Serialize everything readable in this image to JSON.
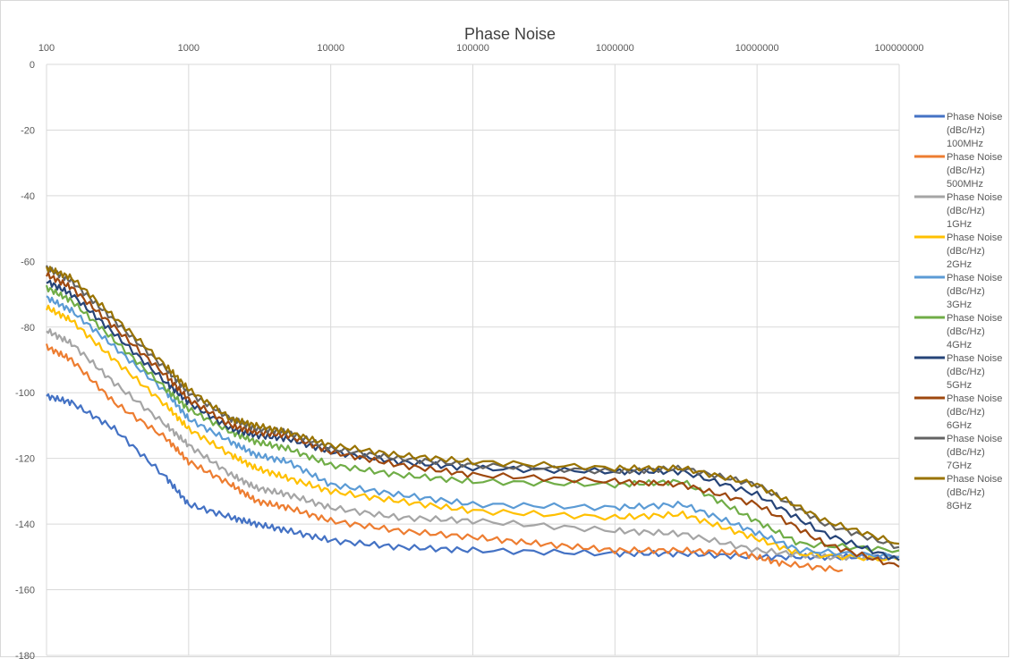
{
  "chart_data": {
    "type": "line",
    "title": "Phase Noise",
    "x_scale": "log",
    "xlim": [
      100,
      100000000
    ],
    "ylim": [
      -180,
      0
    ],
    "x_ticks": [
      "100",
      "1000",
      "10000",
      "100000",
      "1000000",
      "10000000",
      "100000000"
    ],
    "y_ticks": [
      "0",
      "-20",
      "-40",
      "-60",
      "-80",
      "-100",
      "-120",
      "-140",
      "-160",
      "-180"
    ],
    "grid": true,
    "legend_position": "right",
    "series": [
      {
        "name": "Phase Noise (dBc/Hz) 100MHz",
        "color": "#4472C4",
        "x": [
          100,
          150,
          300,
          700,
          1000,
          2000,
          3000,
          5000,
          10000,
          30000,
          100000,
          1000000,
          3000000,
          10000000,
          30000000,
          100000000
        ],
        "y": [
          -101,
          -103,
          -111,
          -126,
          -134,
          -138,
          -140,
          -142,
          -145,
          -147,
          -148,
          -149,
          -149,
          -150,
          -150,
          -150
        ]
      },
      {
        "name": "Phase Noise (dBc/Hz) 500MHz",
        "color": "#ED7D31",
        "x": [
          100,
          150,
          300,
          700,
          1000,
          2000,
          3000,
          5000,
          10000,
          30000,
          100000,
          300000,
          1000000,
          3000000,
          8000000,
          15000000,
          40000000
        ],
        "y": [
          -86,
          -90,
          -103,
          -114,
          -121,
          -128,
          -133,
          -135,
          -139,
          -142,
          -144,
          -146,
          -148,
          -148,
          -149,
          -152,
          -154
        ]
      },
      {
        "name": "Phase Noise (dBc/Hz) 1GHz",
        "color": "#A5A5A5",
        "x": [
          100,
          150,
          300,
          700,
          1000,
          2000,
          3000,
          5000,
          10000,
          30000,
          100000,
          1000000,
          3000000,
          10000000,
          30000000,
          100000000
        ],
        "y": [
          -81,
          -85,
          -97,
          -110,
          -116,
          -125,
          -129,
          -131,
          -135,
          -138,
          -139,
          -142,
          -143,
          -148,
          -150,
          -150
        ]
      },
      {
        "name": "Phase Noise (dBc/Hz) 2GHz",
        "color": "#FFC000",
        "x": [
          100,
          150,
          300,
          700,
          1000,
          2000,
          3000,
          5000,
          10000,
          30000,
          100000,
          1000000,
          3000000,
          8000000,
          20000000,
          100000000
        ],
        "y": [
          -74,
          -78,
          -90,
          -104,
          -111,
          -119,
          -123,
          -126,
          -130,
          -133,
          -136,
          -138,
          -137,
          -143,
          -149,
          -151
        ]
      },
      {
        "name": "Phase Noise (dBc/Hz) 3GHz",
        "color": "#5B9BD5",
        "x": [
          100,
          150,
          300,
          700,
          1000,
          2000,
          3000,
          5000,
          10000,
          30000,
          100000,
          1000000,
          3000000,
          8000000,
          20000000,
          100000000
        ],
        "y": [
          -71,
          -75,
          -86,
          -100,
          -108,
          -115,
          -119,
          -121,
          -128,
          -131,
          -134,
          -135,
          -134,
          -141,
          -148,
          -150
        ]
      },
      {
        "name": "Phase Noise (dBc/Hz) 4GHz",
        "color": "#70AD47",
        "x": [
          100,
          150,
          300,
          700,
          1000,
          2000,
          3000,
          5000,
          10000,
          30000,
          100000,
          1000000,
          3000000,
          8000000,
          20000000,
          100000000
        ],
        "y": [
          -68,
          -72,
          -84,
          -99,
          -105,
          -112,
          -115,
          -117,
          -122,
          -125,
          -127,
          -128,
          -127,
          -137,
          -146,
          -148
        ]
      },
      {
        "name": "Phase Noise (dBc/Hz) 5GHz",
        "color": "#264478",
        "x": [
          100,
          150,
          300,
          700,
          1000,
          2000,
          3000,
          5000,
          10000,
          30000,
          100000,
          1000000,
          3000000,
          10000000,
          30000000,
          100000000
        ],
        "y": [
          -66,
          -70,
          -82,
          -97,
          -103,
          -111,
          -113,
          -114,
          -118,
          -121,
          -123,
          -124,
          -124,
          -131,
          -143,
          -151
        ]
      },
      {
        "name": "Phase Noise (dBc/Hz) 6GHz",
        "color": "#9E480E",
        "x": [
          100,
          150,
          300,
          700,
          1000,
          2000,
          3000,
          5000,
          10000,
          30000,
          100000,
          1000000,
          3000000,
          10000000,
          30000000,
          100000000
        ],
        "y": [
          -64,
          -68,
          -80,
          -95,
          -102,
          -110,
          -112,
          -113,
          -118,
          -122,
          -125,
          -127,
          -128,
          -134,
          -146,
          -153
        ]
      },
      {
        "name": "Phase Noise (dBc/Hz) 7GHz",
        "color": "#636363",
        "x": [
          100,
          150,
          300,
          700,
          1000,
          2000,
          3000,
          5000,
          10000,
          30000,
          100000,
          1000000,
          3000000,
          10000000,
          30000000,
          100000000
        ],
        "y": [
          -62,
          -66,
          -78,
          -93,
          -100,
          -108,
          -111,
          -112,
          -117,
          -120,
          -122,
          -124,
          -123,
          -128,
          -140,
          -147
        ]
      },
      {
        "name": "Phase Noise (dBc/Hz) 8GHz",
        "color": "#997300",
        "x": [
          100,
          150,
          300,
          700,
          1000,
          2000,
          3000,
          5000,
          10000,
          30000,
          100000,
          1000000,
          3000000,
          10000000,
          30000000,
          100000000
        ],
        "y": [
          -62,
          -65,
          -77,
          -92,
          -99,
          -108,
          -110,
          -112,
          -116,
          -119,
          -121,
          -123,
          -123,
          -128,
          -139,
          -146
        ]
      }
    ]
  }
}
